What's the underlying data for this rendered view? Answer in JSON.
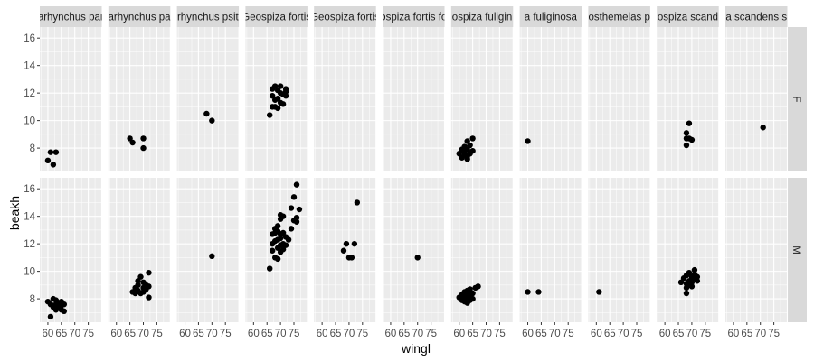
{
  "chart_data": {
    "type": "scatter",
    "facets": {
      "rows_var": "sex",
      "cols_var": "species"
    },
    "xlabel": "wingl",
    "ylabel": "beakh",
    "xlim": [
      57,
      80
    ],
    "ylim": [
      6.3,
      16.8
    ],
    "x_ticks": [
      60,
      65,
      70,
      75
    ],
    "y_ticks": [
      8,
      10,
      12,
      14,
      16
    ],
    "columns": [
      "arhynchus par",
      "arhynchus pa",
      "rhynchus psit",
      "Geospiza fortis",
      "Geospiza fortis",
      "ospiza fortis fo",
      "ospiza fuligin",
      "a fuliginosa",
      "osthemelas p",
      "ospiza scand",
      "a scandens s"
    ],
    "rows": [
      "F",
      "M"
    ],
    "panels": {
      "F": [
        [
          [
            60,
            7.1
          ],
          [
            61,
            7.7
          ],
          [
            62,
            6.8
          ],
          [
            63,
            7.7
          ]
        ],
        [
          [
            65,
            8.7
          ],
          [
            66,
            8.4
          ],
          [
            70,
            8.0
          ],
          [
            70,
            8.7
          ]
        ],
        [
          [
            68,
            10.5
          ],
          [
            70,
            10.0
          ]
        ],
        [
          [
            66,
            10.4
          ],
          [
            67,
            11.0
          ],
          [
            67,
            11.8
          ],
          [
            67,
            12.3
          ],
          [
            68,
            11.0
          ],
          [
            68,
            11.5
          ],
          [
            68,
            12.5
          ],
          [
            69,
            10.9
          ],
          [
            69,
            11.6
          ],
          [
            69,
            12.2
          ],
          [
            70,
            11.3
          ],
          [
            70,
            12.0
          ],
          [
            70,
            12.5
          ],
          [
            71,
            11.2
          ],
          [
            71,
            11.9
          ],
          [
            72,
            11.8
          ],
          [
            72,
            12.1
          ],
          [
            72,
            12.3
          ]
        ],
        [],
        [],
        [
          [
            60,
            7.6
          ],
          [
            61,
            7.3
          ],
          [
            61,
            7.8
          ],
          [
            62,
            7.5
          ],
          [
            62,
            8.1
          ],
          [
            63,
            7.2
          ],
          [
            63,
            7.9
          ],
          [
            63,
            8.5
          ],
          [
            64,
            7.6
          ],
          [
            64,
            8.2
          ],
          [
            65,
            7.8
          ],
          [
            65,
            8.7
          ],
          [
            61,
            7.9
          ],
          [
            62,
            7.8
          ],
          [
            63,
            7.4
          ]
        ],
        [
          [
            60,
            8.5
          ]
        ],
        [],
        [
          [
            68,
            8.2
          ],
          [
            68,
            8.7
          ],
          [
            68,
            9.1
          ],
          [
            69,
            8.7
          ],
          [
            69,
            9.8
          ],
          [
            70,
            8.6
          ]
        ],
        [
          [
            71,
            9.5
          ]
        ]
      ],
      "M": [
        [
          [
            60,
            7.8
          ],
          [
            61,
            6.7
          ],
          [
            61,
            7.6
          ],
          [
            62,
            7.4
          ],
          [
            62,
            8.0
          ],
          [
            63,
            7.2
          ],
          [
            63,
            7.6
          ],
          [
            63,
            7.9
          ],
          [
            64,
            7.4
          ],
          [
            64,
            7.7
          ],
          [
            65,
            7.2
          ],
          [
            65,
            7.5
          ],
          [
            65,
            7.8
          ],
          [
            66,
            7.1
          ],
          [
            66,
            7.6
          ],
          [
            62,
            7.5
          ]
        ],
        [
          [
            66,
            8.5
          ],
          [
            67,
            8.8
          ],
          [
            67,
            8.4
          ],
          [
            68,
            9.0
          ],
          [
            68,
            8.6
          ],
          [
            68,
            9.3
          ],
          [
            69,
            9.6
          ],
          [
            69,
            8.4
          ],
          [
            70,
            8.8
          ],
          [
            70,
            9.2
          ],
          [
            70,
            8.5
          ],
          [
            71,
            8.7
          ],
          [
            71,
            9.0
          ],
          [
            72,
            8.1
          ],
          [
            72,
            9.9
          ],
          [
            72,
            8.9
          ]
        ],
        [
          [
            70,
            11.1
          ]
        ],
        [
          [
            66,
            10.2
          ],
          [
            67,
            11.5
          ],
          [
            67,
            12.0
          ],
          [
            67,
            12.7
          ],
          [
            68,
            11.0
          ],
          [
            68,
            12.2
          ],
          [
            68,
            12.8
          ],
          [
            68,
            13.1
          ],
          [
            69,
            10.9
          ],
          [
            69,
            11.7
          ],
          [
            69,
            12.3
          ],
          [
            69,
            12.9
          ],
          [
            69,
            13.3
          ],
          [
            70,
            11.4
          ],
          [
            70,
            11.9
          ],
          [
            70,
            12.4
          ],
          [
            70,
            12.7
          ],
          [
            70,
            13.8
          ],
          [
            70,
            14.1
          ],
          [
            71,
            11.6
          ],
          [
            71,
            12.0
          ],
          [
            71,
            12.8
          ],
          [
            71,
            14.0
          ],
          [
            72,
            11.9
          ],
          [
            72,
            12.5
          ],
          [
            73,
            12.3
          ],
          [
            74,
            13.1
          ],
          [
            74,
            14.6
          ],
          [
            75,
            13.7
          ],
          [
            75,
            15.4
          ],
          [
            76,
            13.6
          ],
          [
            76,
            16.3
          ],
          [
            76,
            13.9
          ],
          [
            77,
            14.5
          ]
        ],
        [
          [
            68,
            11.5
          ],
          [
            69,
            12.0
          ],
          [
            70,
            11.0
          ],
          [
            71,
            11.0
          ],
          [
            72,
            12.0
          ],
          [
            73,
            15.0
          ]
        ],
        [
          [
            70,
            11.0
          ]
        ],
        [
          [
            60,
            8.1
          ],
          [
            61,
            7.9
          ],
          [
            61,
            8.3
          ],
          [
            62,
            8.0
          ],
          [
            62,
            8.5
          ],
          [
            62,
            7.8
          ],
          [
            63,
            7.7
          ],
          [
            63,
            8.1
          ],
          [
            63,
            8.6
          ],
          [
            64,
            7.9
          ],
          [
            64,
            8.3
          ],
          [
            64,
            8.7
          ],
          [
            65,
            8.0
          ],
          [
            65,
            8.4
          ],
          [
            66,
            8.8
          ],
          [
            67,
            8.9
          ],
          [
            62,
            8.2
          ],
          [
            63,
            8.4
          ],
          [
            64,
            8.1
          ]
        ],
        [
          [
            60,
            8.5
          ],
          [
            64,
            8.5
          ]
        ],
        [
          [
            61,
            8.5
          ]
        ],
        [
          [
            66,
            9.2
          ],
          [
            67,
            9.5
          ],
          [
            68,
            9.7
          ],
          [
            68,
            9.1
          ],
          [
            68,
            8.4
          ],
          [
            68,
            8.8
          ],
          [
            69,
            9.3
          ],
          [
            69,
            9.9
          ],
          [
            69,
            9.0
          ],
          [
            70,
            9.4
          ],
          [
            70,
            9.6
          ],
          [
            70,
            8.9
          ],
          [
            70,
            9.2
          ],
          [
            71,
            10.1
          ],
          [
            71,
            9.5
          ],
          [
            71,
            9.8
          ],
          [
            72,
            9.3
          ],
          [
            72,
            9.6
          ]
        ],
        []
      ]
    }
  }
}
